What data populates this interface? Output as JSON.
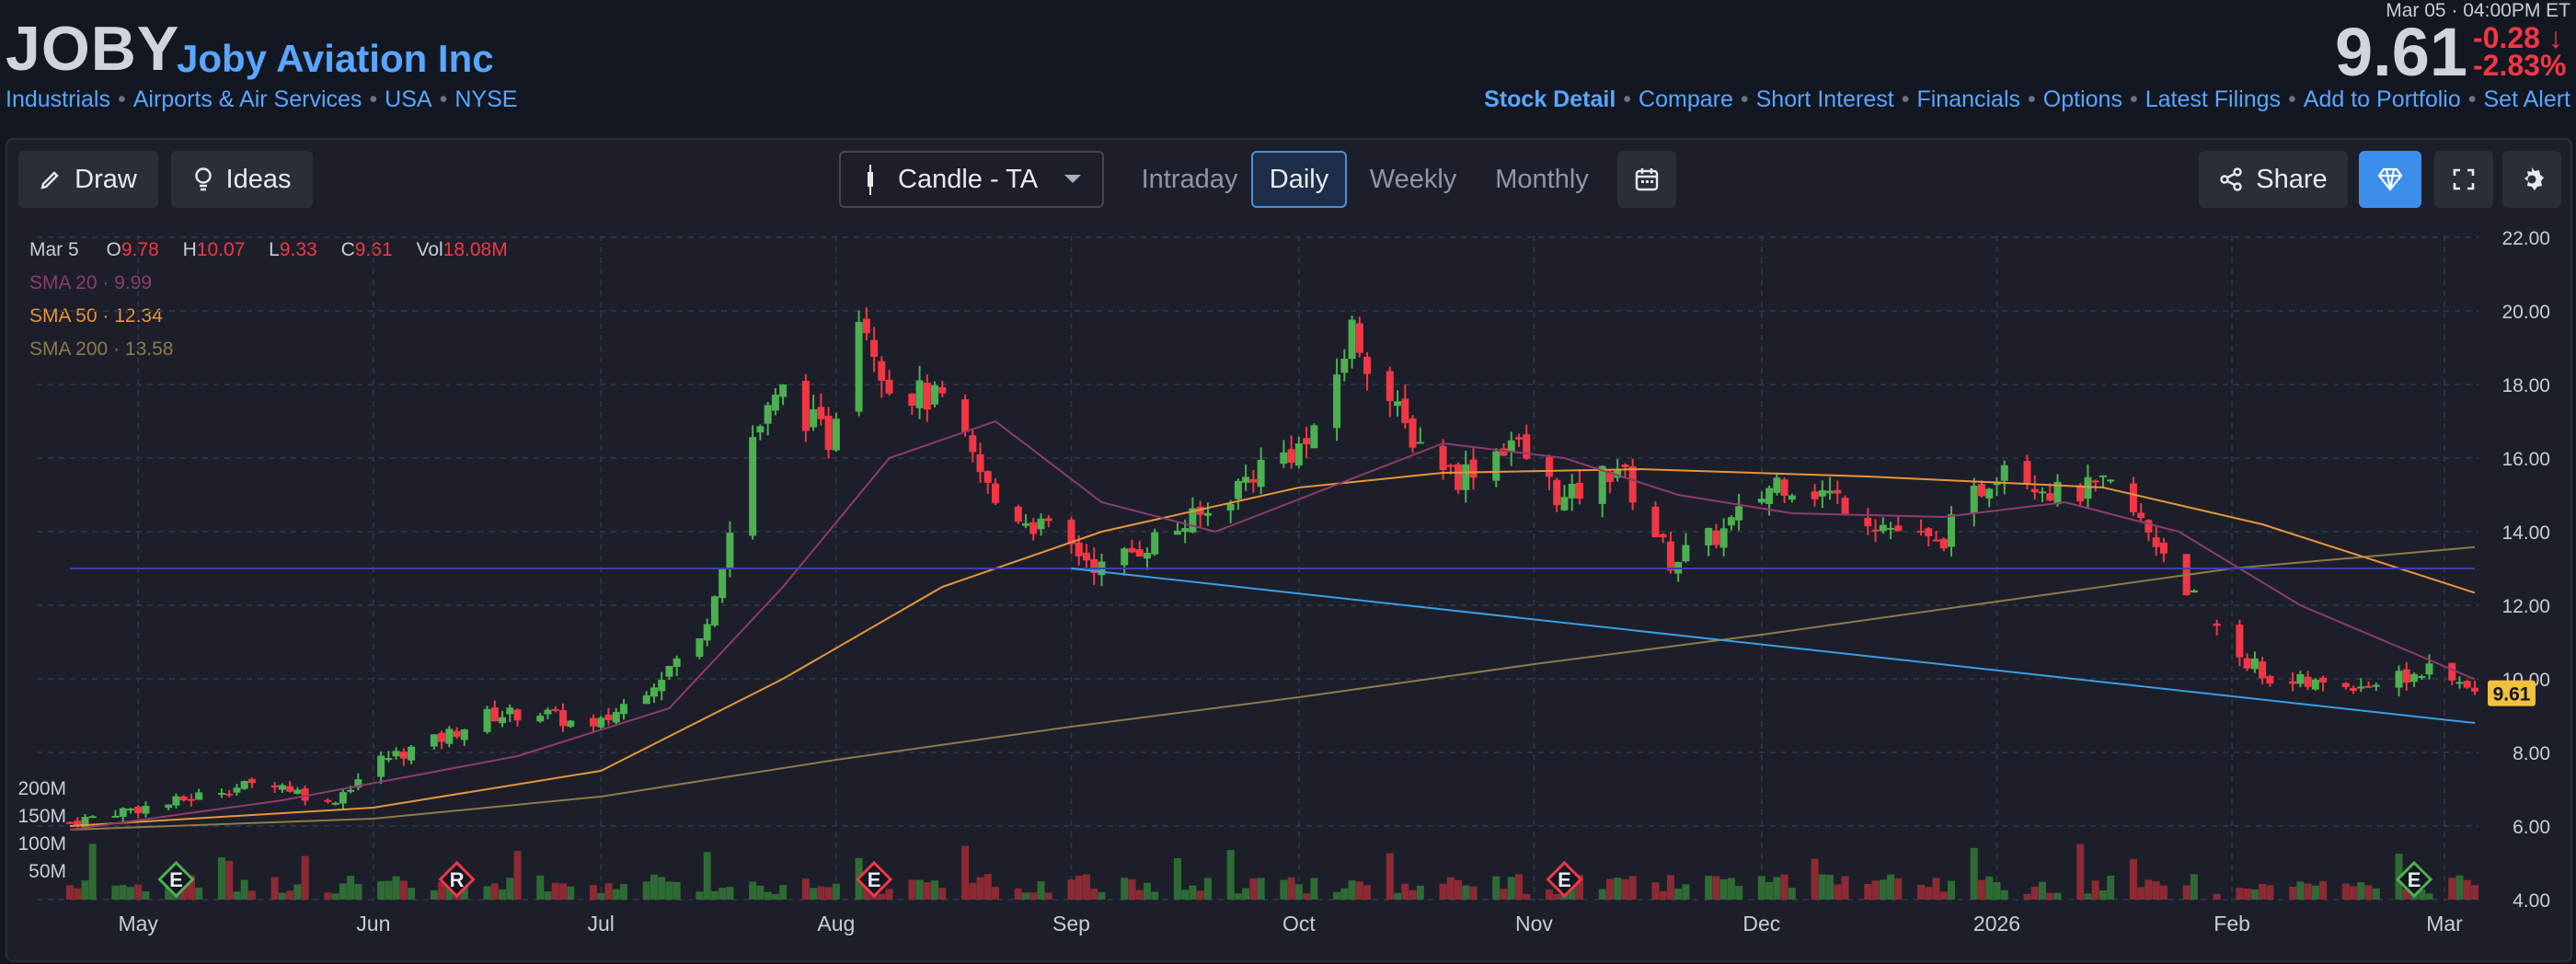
{
  "header": {
    "ticker": "JOBY",
    "company": "Joby Aviation Inc",
    "tags": [
      "Industrials",
      "Airports & Air Services",
      "USA",
      "NYSE"
    ],
    "timestamp": "Mar 05 · 04:00PM ET",
    "price": "9.61",
    "change": "-0.28",
    "change_pct": "-2.83%",
    "nav": [
      "Stock Detail",
      "Compare",
      "Short Interest",
      "Financials",
      "Options",
      "Latest Filings",
      "Add to Portfolio",
      "Set Alert"
    ]
  },
  "toolbar": {
    "draw": "Draw",
    "ideas": "Ideas",
    "chart_type": "Candle - TA",
    "timeframes": [
      "Intraday",
      "Daily",
      "Weekly",
      "Monthly"
    ],
    "active_timeframe": "Daily",
    "share": "Share"
  },
  "legend": {
    "date": "Mar 5",
    "o_label": "O",
    "o": "9.78",
    "h_label": "H",
    "h": "10.07",
    "l_label": "L",
    "l": "9.33",
    "c_label": "C",
    "c": "9.61",
    "vol_label": "Vol",
    "vol": "18.08M",
    "sma20_label": "SMA 20",
    "sma20": "9.99",
    "sma50_label": "SMA 50",
    "sma50": "12.34",
    "sma200_label": "SMA 200",
    "sma200": "13.58"
  },
  "colors": {
    "up": "#4caf50",
    "down": "#f23645",
    "sma20": "#8e3a6e",
    "sma50": "#e8943a",
    "sma200": "#8c7a4a",
    "trendline": "#3b9fe0",
    "hline": "#3f3fa8",
    "link": "#58a6ff"
  },
  "chart_data": {
    "type": "candlestick",
    "ylim": [
      4,
      22
    ],
    "y_ticks": [
      "22.00",
      "20.00",
      "18.00",
      "16.00",
      "14.00",
      "12.00",
      "10.00",
      "8.00",
      "6.00",
      "4.00"
    ],
    "x_ticks": [
      "May",
      "Jun",
      "Jul",
      "Aug",
      "Sep",
      "Oct",
      "Nov",
      "Dec",
      "2026",
      "Feb",
      "Mar"
    ],
    "volume_ticks": [
      "200M",
      "150M",
      "100M",
      "50M"
    ],
    "last_price_label": "9.61",
    "close_path": [
      [
        "2025-04-22",
        6.1
      ],
      [
        "2025-04-28",
        6.4
      ],
      [
        "2025-05-05",
        6.6
      ],
      [
        "2025-05-12",
        7.0
      ],
      [
        "2025-05-19",
        7.2
      ],
      [
        "2025-05-26",
        6.6
      ],
      [
        "2025-06-02",
        7.8
      ],
      [
        "2025-06-09",
        8.3
      ],
      [
        "2025-06-16",
        9.0
      ],
      [
        "2025-06-23",
        9.1
      ],
      [
        "2025-06-30",
        8.6
      ],
      [
        "2025-07-07",
        9.8
      ],
      [
        "2025-07-14",
        11.0
      ],
      [
        "2025-07-18",
        14.0
      ],
      [
        "2025-07-21",
        16.6
      ],
      [
        "2025-07-25",
        17.8
      ],
      [
        "2025-07-31",
        16.5
      ],
      [
        "2025-08-04",
        20.2
      ],
      [
        "2025-08-08",
        18.0
      ],
      [
        "2025-08-15",
        17.5
      ],
      [
        "2025-08-22",
        14.8
      ],
      [
        "2025-08-29",
        14.0
      ],
      [
        "2025-09-05",
        13.0
      ],
      [
        "2025-09-12",
        13.8
      ],
      [
        "2025-09-19",
        14.5
      ],
      [
        "2025-09-26",
        15.8
      ],
      [
        "2025-10-03",
        16.5
      ],
      [
        "2025-10-08",
        19.5
      ],
      [
        "2025-10-15",
        16.8
      ],
      [
        "2025-10-22",
        15.5
      ],
      [
        "2025-10-29",
        16.5
      ],
      [
        "2025-11-05",
        14.8
      ],
      [
        "2025-11-12",
        15.8
      ],
      [
        "2025-11-19",
        13.2
      ],
      [
        "2025-11-26",
        14.0
      ],
      [
        "2025-12-03",
        15.4
      ],
      [
        "2025-12-10",
        15.0
      ],
      [
        "2025-12-17",
        14.2
      ],
      [
        "2025-12-24",
        13.6
      ],
      [
        "2026-01-02",
        16.0
      ],
      [
        "2026-01-09",
        15.0
      ],
      [
        "2026-01-16",
        15.2
      ],
      [
        "2026-01-23",
        13.5
      ],
      [
        "2026-01-30",
        11.2
      ],
      [
        "2026-02-06",
        10.0
      ],
      [
        "2026-02-13",
        9.8
      ],
      [
        "2026-02-20",
        9.9
      ],
      [
        "2026-02-27",
        10.2
      ],
      [
        "2026-03-05",
        9.61
      ]
    ],
    "sma20": [
      [
        "2025-04-22",
        5.9
      ],
      [
        "2025-05-20",
        6.7
      ],
      [
        "2025-06-20",
        7.9
      ],
      [
        "2025-07-10",
        9.2
      ],
      [
        "2025-07-25",
        12.5
      ],
      [
        "2025-08-08",
        16.0
      ],
      [
        "2025-08-22",
        17.0
      ],
      [
        "2025-09-05",
        14.8
      ],
      [
        "2025-09-20",
        14.0
      ],
      [
        "2025-10-05",
        15.2
      ],
      [
        "2025-10-20",
        16.4
      ],
      [
        "2025-11-05",
        16.0
      ],
      [
        "2025-11-20",
        15.0
      ],
      [
        "2025-12-05",
        14.5
      ],
      [
        "2025-12-25",
        14.4
      ],
      [
        "2026-01-10",
        14.8
      ],
      [
        "2026-01-25",
        14.0
      ],
      [
        "2026-02-10",
        12.0
      ],
      [
        "2026-03-05",
        9.99
      ]
    ],
    "sma50": [
      [
        "2025-04-22",
        6.0
      ],
      [
        "2025-06-01",
        6.5
      ],
      [
        "2025-07-01",
        7.5
      ],
      [
        "2025-07-25",
        10.0
      ],
      [
        "2025-08-15",
        12.5
      ],
      [
        "2025-09-05",
        14.0
      ],
      [
        "2025-10-01",
        15.2
      ],
      [
        "2025-10-20",
        15.6
      ],
      [
        "2025-11-15",
        15.7
      ],
      [
        "2025-12-15",
        15.5
      ],
      [
        "2026-01-15",
        15.2
      ],
      [
        "2026-02-05",
        14.2
      ],
      [
        "2026-03-05",
        12.34
      ]
    ],
    "sma200": [
      [
        "2025-04-22",
        5.9
      ],
      [
        "2025-06-01",
        6.2
      ],
      [
        "2025-07-01",
        6.8
      ],
      [
        "2025-08-01",
        7.8
      ],
      [
        "2025-09-01",
        8.7
      ],
      [
        "2025-10-01",
        9.5
      ],
      [
        "2025-11-01",
        10.4
      ],
      [
        "2025-12-01",
        11.2
      ],
      [
        "2026-01-01",
        12.1
      ],
      [
        "2026-02-01",
        13.0
      ],
      [
        "2026-03-05",
        13.58
      ]
    ],
    "horizontal_line": 13.0,
    "trendline": [
      [
        "2025-09-01",
        13.0
      ],
      [
        "2026-03-05",
        8.8
      ]
    ],
    "earnings_markers": [
      {
        "label": "E",
        "date": "2025-05-06",
        "tone": "up"
      },
      {
        "label": "R",
        "date": "2025-06-12",
        "tone": "down"
      },
      {
        "label": "E",
        "date": "2025-08-06",
        "tone": "down"
      },
      {
        "label": "E",
        "date": "2025-11-05",
        "tone": "down"
      },
      {
        "label": "E",
        "date": "2026-02-25",
        "tone": "up"
      }
    ]
  }
}
